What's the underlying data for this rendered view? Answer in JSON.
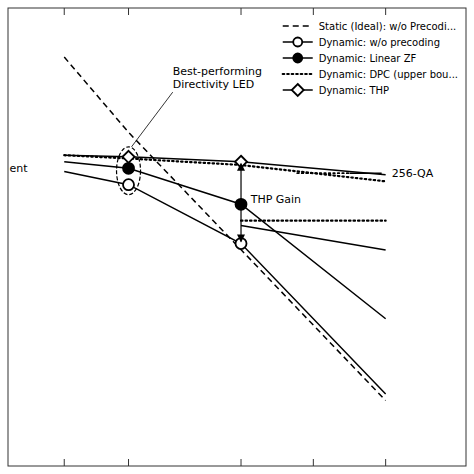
{
  "chart_data": {
    "type": "line",
    "background_color": "#ffffff",
    "series": [
      {
        "name": "Static (Ideal): w/o Precodi...",
        "x": [
          -0.8,
          0.0,
          3.2
        ],
        "values": [
          7.5,
          5.2,
          -3.0
        ],
        "line_style": "dashed"
      },
      {
        "name": "Dynamic: w/o precoding",
        "x": [
          -0.8,
          0.0,
          1.4,
          3.2
        ],
        "values": [
          4.0,
          3.6,
          1.8,
          -2.8
        ],
        "line_style": "solid",
        "marker": "circle-open"
      },
      {
        "name": "Dynamic: Linear ZF",
        "x": [
          -0.8,
          0.0,
          1.4,
          3.2
        ],
        "values": [
          4.3,
          4.1,
          3.0,
          -0.5
        ],
        "line_style": "solid",
        "marker": "circle"
      },
      {
        "name": "Dynamic: DPC (upper bou...",
        "x": [
          -0.8,
          0.0,
          1.4,
          3.2
        ],
        "values": [
          4.5,
          4.4,
          4.2,
          3.7
        ],
        "line_style": "dotted"
      },
      {
        "name": "Dynamic: THP",
        "x": [
          -0.8,
          0.0,
          1.4,
          3.2
        ],
        "values": [
          4.5,
          4.45,
          4.3,
          3.9
        ],
        "line_style": "solid",
        "marker": "diamond-open"
      },
      {
        "x": [
          1.4,
          3.2
        ],
        "values": [
          2.5,
          2.5
        ],
        "line_style": "dotted"
      },
      {
        "x": [
          1.4,
          3.2
        ],
        "values": [
          2.35,
          1.6
        ],
        "line_style": "solid"
      }
    ],
    "annotations": [
      {
        "text": "Best-performing\nDirectivity LED",
        "x": 0.55,
        "y": 6.55
      },
      {
        "text": "ent",
        "x": -1.48,
        "y": 4.1
      },
      {
        "text": "THP Gain",
        "x": 1.52,
        "y": 3.15
      },
      {
        "text": "256-QA",
        "x": 3.2,
        "y": 3.95
      }
    ],
    "xlim": [
      -1.5,
      4.2
    ],
    "ylim": [
      -5.0,
      9.0
    ],
    "xticks": [
      -0.8,
      0.0,
      1.4,
      2.3,
      3.2
    ],
    "yticks": [],
    "tick_labels": false,
    "legend": "upper right"
  }
}
